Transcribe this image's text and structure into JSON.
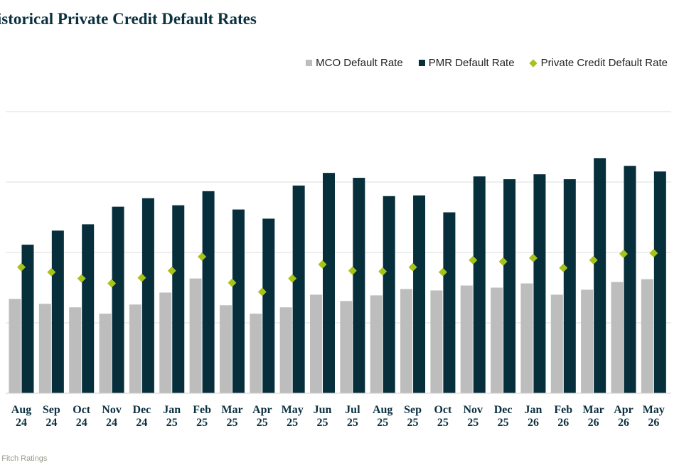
{
  "chart_data": {
    "type": "bar",
    "title": "Historical Private Credit Default Rates",
    "categories": [
      [
        "Aug",
        "24"
      ],
      [
        "Sep",
        "24"
      ],
      [
        "Oct",
        "24"
      ],
      [
        "Nov",
        "24"
      ],
      [
        "Dec",
        "24"
      ],
      [
        "Jan",
        "25"
      ],
      [
        "Feb",
        "25"
      ],
      [
        "Mar",
        "25"
      ],
      [
        "Apr",
        "25"
      ],
      [
        "May",
        "25"
      ],
      [
        "Jun",
        "25"
      ],
      [
        "Jul",
        "25"
      ],
      [
        "Aug",
        "25"
      ],
      [
        "Sep",
        "25"
      ],
      [
        "Oct",
        "25"
      ],
      [
        "Nov",
        "25"
      ],
      [
        "Dec",
        "25"
      ],
      [
        "Jan",
        "26"
      ],
      [
        "Feb",
        "26"
      ],
      [
        "Mar",
        "26"
      ],
      [
        "Apr",
        "26"
      ],
      [
        "May",
        "26"
      ]
    ],
    "series": [
      {
        "name": "MCO Default Rate",
        "type": "bar",
        "color": "#bdbdbd",
        "values": [
          1.34,
          1.27,
          1.22,
          1.13,
          1.26,
          1.43,
          1.63,
          1.25,
          1.13,
          1.22,
          1.4,
          1.31,
          1.39,
          1.48,
          1.46,
          1.53,
          1.5,
          1.56,
          1.4,
          1.47,
          1.58,
          1.62
        ]
      },
      {
        "name": "PMR Default Rate",
        "type": "bar",
        "color": "#062f3b",
        "values": [
          2.11,
          2.31,
          2.4,
          2.65,
          2.77,
          2.67,
          2.87,
          2.61,
          2.48,
          2.95,
          3.13,
          3.06,
          2.8,
          2.81,
          2.57,
          3.08,
          3.04,
          3.11,
          3.04,
          3.34,
          3.23,
          3.15
        ]
      },
      {
        "name": "Private Credit Default Rate",
        "type": "marker",
        "color": "#a8c21c",
        "values": [
          1.79,
          1.72,
          1.63,
          1.56,
          1.64,
          1.74,
          1.94,
          1.57,
          1.44,
          1.63,
          1.83,
          1.74,
          1.73,
          1.79,
          1.72,
          1.89,
          1.87,
          1.92,
          1.78,
          1.89,
          1.98,
          1.99
        ]
      }
    ],
    "ylim": [
      0,
      4
    ],
    "grid": true,
    "legend_position": "top-right",
    "source": "e: Fitch Ratings"
  }
}
